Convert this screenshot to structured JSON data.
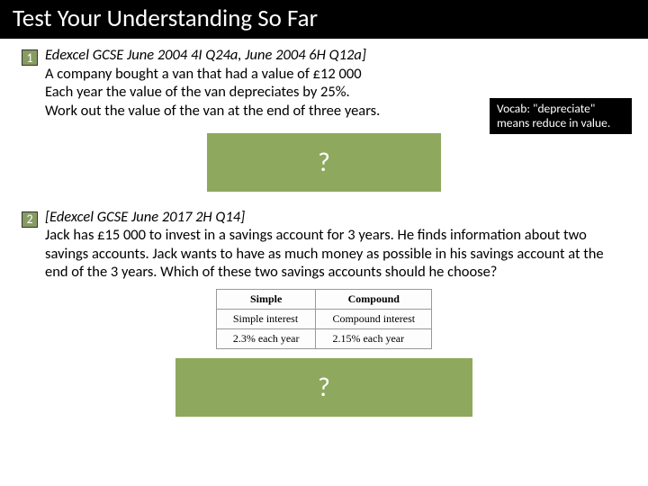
{
  "title": "Test Your Understanding So Far",
  "q1": {
    "num": "1",
    "citation": "Edexcel GCSE June 2004 4I Q24a, June 2004 6H Q12a]",
    "line1": "A company bought a van that had a value of £12 000",
    "line2": "Each year the value of the van depreciates by 25%.",
    "line3": "Work out the value of the van at the end of three years.",
    "vocab": "Vocab: \"depreciate\" means reduce in value.",
    "answer": "?"
  },
  "q2": {
    "num": "2",
    "citation": "[Edexcel GCSE June 2017 2H Q14]",
    "body": "Jack has £15 000 to invest in a savings account for 3 years. He finds information about two savings accounts. Jack wants to have as much money as possible in his savings account at the end of the 3 years. Which of these two savings accounts should he choose?",
    "answer": "?"
  },
  "table": {
    "h1": "Simple",
    "h2": "Compound",
    "r1c1": "Simple interest",
    "r1c2": "Compound interest",
    "r2c1": "2.3% each year",
    "r2c2": "2.15% each year"
  },
  "colors": {
    "badge_bg": "#879c62",
    "answer_bg": "#8ea85d",
    "title_bg": "#000000"
  }
}
